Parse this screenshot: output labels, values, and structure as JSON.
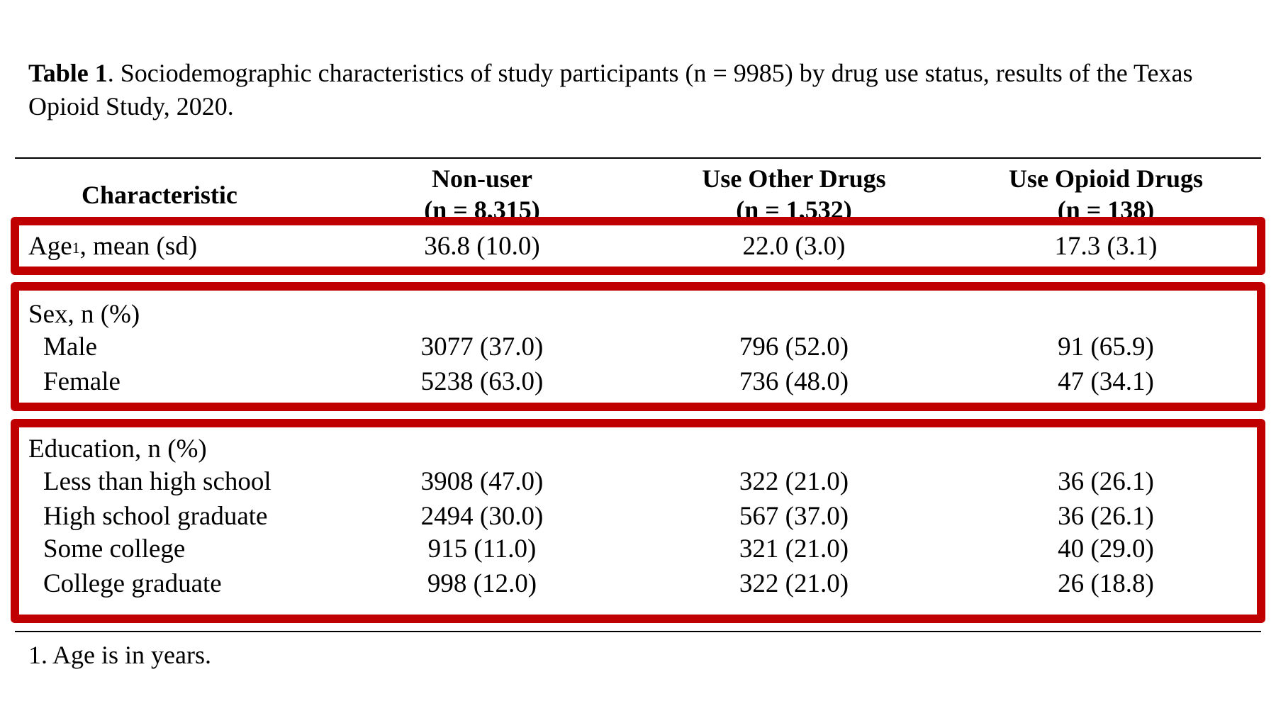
{
  "caption": {
    "table_label": "Table 1",
    "text": ". Sociodemographic characteristics of study participants (n = 9985) by drug use status, results of the Texas Opioid Study, 2020."
  },
  "header": {
    "characteristic": "Characteristic",
    "columns": [
      {
        "name": "Non-user",
        "n": "(n = 8,315)"
      },
      {
        "name": "Use Other Drugs",
        "n": "(n = 1,532)"
      },
      {
        "name": "Use Opioid Drugs",
        "n": "(n = 138)"
      }
    ]
  },
  "age": {
    "label": "Age",
    "sup": "1",
    "label_suffix": ", mean (sd)",
    "values": [
      "36.8 (10.0)",
      "22.0 (3.0)",
      "17.3 (3.1)"
    ]
  },
  "sex": {
    "label": "Sex, n (%)",
    "rows": [
      {
        "label": "Male",
        "values": [
          "3077 (37.0)",
          "796 (52.0)",
          "91 (65.9)"
        ]
      },
      {
        "label": "Female",
        "values": [
          "5238 (63.0)",
          "736 (48.0)",
          "47 (34.1)"
        ]
      }
    ]
  },
  "education": {
    "label": "Education, n (%)",
    "rows": [
      {
        "label": "Less than high school",
        "values": [
          "3908 (47.0)",
          "322 (21.0)",
          "36 (26.1)"
        ]
      },
      {
        "label": "High school graduate",
        "values": [
          "2494 (30.0)",
          "567 (37.0)",
          "36 (26.1)"
        ]
      },
      {
        "label": "Some college",
        "values": [
          "915 (11.0)",
          "321 (21.0)",
          "40 (29.0)"
        ]
      },
      {
        "label": "College graduate",
        "values": [
          "998 (12.0)",
          "322 (21.0)",
          "26 (18.8)"
        ]
      }
    ]
  },
  "footnote": "1. Age is in years.",
  "colors": {
    "highlight": "#c00000"
  }
}
